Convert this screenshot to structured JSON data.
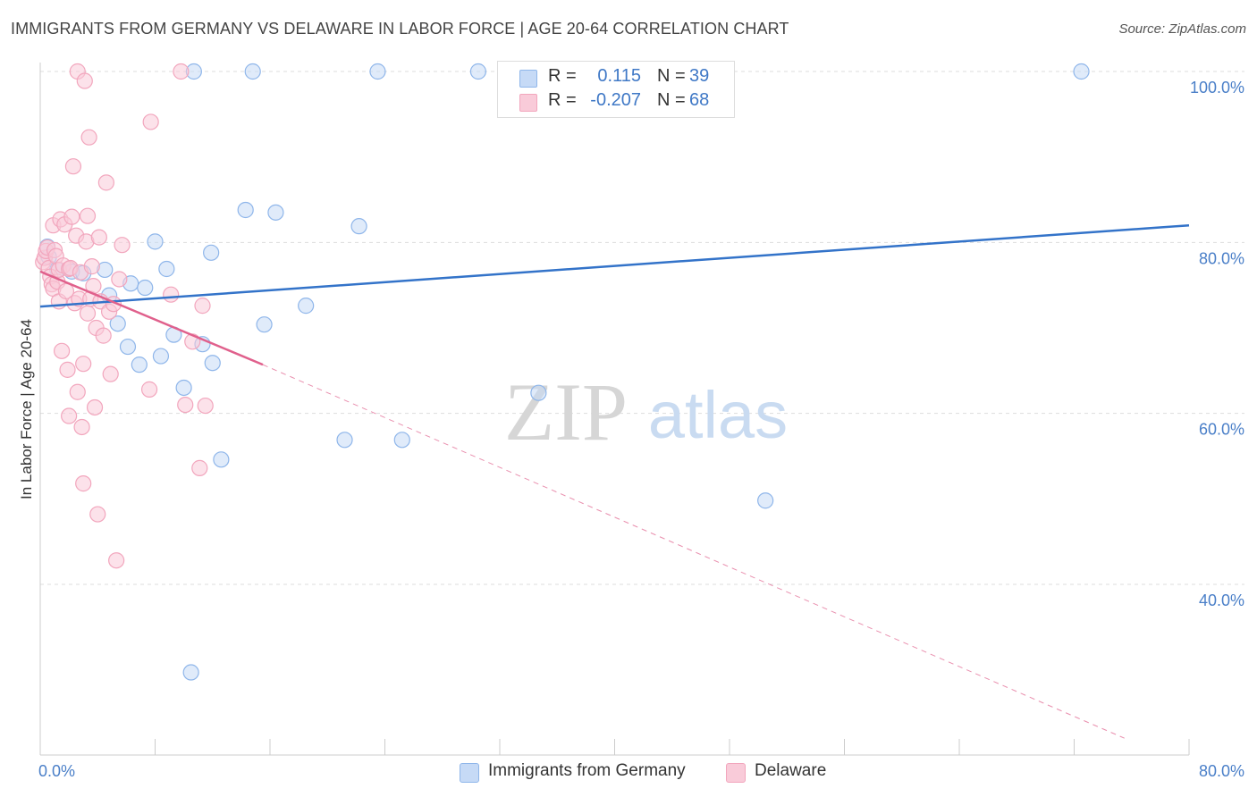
{
  "title": "IMMIGRANTS FROM GERMANY VS DELAWARE IN LABOR FORCE | AGE 20-64 CORRELATION CHART",
  "source": "Source: ZipAtlas.com",
  "watermark": {
    "zip": "ZIP",
    "atlas": "atlas"
  },
  "legend": {
    "r_label": "R =",
    "n_label": "N =",
    "series": [
      {
        "r": "0.115",
        "n": "39"
      },
      {
        "r": "-0.207",
        "n": "68"
      }
    ]
  },
  "chart_data": {
    "type": "scatter",
    "title": "IMMIGRANTS FROM GERMANY VS DELAWARE IN LABOR FORCE | AGE 20-64 CORRELATION CHART",
    "xlabel": "",
    "ylabel": "In Labor Force | Age 20-64",
    "xlim": [
      0,
      80
    ],
    "ylim": [
      20,
      102
    ],
    "x_tick_labels": [
      "0.0%",
      "80.0%"
    ],
    "y_ticks": [
      40,
      60,
      80,
      100
    ],
    "y_tick_labels": [
      "40.0%",
      "60.0%",
      "80.0%",
      "100.0%"
    ],
    "grid": true,
    "legend_position": "top-center",
    "series": [
      {
        "name": "Immigrants from Germany",
        "color": "#8fb6ea",
        "fill": "#c6daf6",
        "line_color": "#3373c9",
        "trend": {
          "x": [
            0,
            80
          ],
          "y": [
            72.5,
            82.0
          ],
          "dashed_extension": false
        },
        "points": [
          [
            0.5,
            79.5
          ],
          [
            0.6,
            78.3
          ],
          [
            1.2,
            76.8
          ],
          [
            2.2,
            76.6
          ],
          [
            3.0,
            76.4
          ],
          [
            4.5,
            76.8
          ],
          [
            4.8,
            73.8
          ],
          [
            5.4,
            70.5
          ],
          [
            6.1,
            67.8
          ],
          [
            6.3,
            75.2
          ],
          [
            6.9,
            65.7
          ],
          [
            7.3,
            74.7
          ],
          [
            8.0,
            80.1
          ],
          [
            8.4,
            66.7
          ],
          [
            8.8,
            76.9
          ],
          [
            9.3,
            69.2
          ],
          [
            10.0,
            63.0
          ],
          [
            10.5,
            29.7
          ],
          [
            10.7,
            100
          ],
          [
            11.3,
            68.1
          ],
          [
            11.9,
            78.8
          ],
          [
            12.0,
            65.9
          ],
          [
            12.6,
            54.6
          ],
          [
            14.3,
            83.8
          ],
          [
            14.8,
            100
          ],
          [
            15.6,
            70.4
          ],
          [
            16.4,
            83.5
          ],
          [
            18.5,
            72.6
          ],
          [
            21.2,
            56.9
          ],
          [
            22.2,
            81.9
          ],
          [
            23.5,
            100
          ],
          [
            25.2,
            56.9
          ],
          [
            30.5,
            100
          ],
          [
            34.7,
            62.4
          ],
          [
            50.5,
            49.8
          ],
          [
            72.5,
            100
          ]
        ]
      },
      {
        "name": "Delaware",
        "color": "#f2a6bd",
        "fill": "#f9cbd9",
        "line_color": "#e0608c",
        "trend": {
          "x": [
            0,
            15.5
          ],
          "y": [
            76.6,
            65.7
          ],
          "dashed_extension": true,
          "dashed_to": [
            75.5,
            22.0
          ]
        },
        "points": [
          [
            0.2,
            77.7
          ],
          [
            0.3,
            78.2
          ],
          [
            0.4,
            79.0
          ],
          [
            0.5,
            79.4
          ],
          [
            0.6,
            77.0
          ],
          [
            0.7,
            76.0
          ],
          [
            0.8,
            75.1
          ],
          [
            0.9,
            74.6
          ],
          [
            0.9,
            82.0
          ],
          [
            1.0,
            79.1
          ],
          [
            1.1,
            78.4
          ],
          [
            1.2,
            75.4
          ],
          [
            1.3,
            73.1
          ],
          [
            1.3,
            76.8
          ],
          [
            1.4,
            82.7
          ],
          [
            1.5,
            67.3
          ],
          [
            1.6,
            77.3
          ],
          [
            1.7,
            82.1
          ],
          [
            1.8,
            74.3
          ],
          [
            1.9,
            65.1
          ],
          [
            2.0,
            59.7
          ],
          [
            2.0,
            76.9
          ],
          [
            2.1,
            77.0
          ],
          [
            2.2,
            83.0
          ],
          [
            2.3,
            88.9
          ],
          [
            2.4,
            72.9
          ],
          [
            2.5,
            80.8
          ],
          [
            2.6,
            100
          ],
          [
            2.6,
            62.5
          ],
          [
            2.7,
            73.4
          ],
          [
            2.8,
            76.5
          ],
          [
            2.9,
            58.4
          ],
          [
            3.0,
            51.8
          ],
          [
            3.0,
            65.8
          ],
          [
            3.1,
            98.9
          ],
          [
            3.2,
            80.1
          ],
          [
            3.3,
            71.7
          ],
          [
            3.3,
            83.1
          ],
          [
            3.4,
            92.3
          ],
          [
            3.5,
            73.4
          ],
          [
            3.6,
            77.2
          ],
          [
            3.7,
            74.9
          ],
          [
            3.8,
            60.7
          ],
          [
            3.9,
            70.0
          ],
          [
            4.0,
            48.2
          ],
          [
            4.1,
            80.6
          ],
          [
            4.2,
            73.1
          ],
          [
            4.4,
            69.1
          ],
          [
            4.6,
            87.0
          ],
          [
            4.8,
            71.9
          ],
          [
            4.9,
            64.6
          ],
          [
            5.1,
            72.8
          ],
          [
            5.3,
            42.8
          ],
          [
            5.5,
            75.7
          ],
          [
            5.7,
            79.7
          ],
          [
            7.6,
            62.8
          ],
          [
            7.7,
            94.1
          ],
          [
            9.1,
            73.9
          ],
          [
            9.8,
            100
          ],
          [
            10.1,
            61.0
          ],
          [
            10.6,
            68.4
          ],
          [
            11.1,
            53.6
          ],
          [
            11.3,
            72.6
          ],
          [
            11.5,
            60.9
          ]
        ]
      }
    ]
  },
  "bottom_legend": [
    {
      "label": "Immigrants from Germany"
    },
    {
      "label": "Delaware"
    }
  ]
}
